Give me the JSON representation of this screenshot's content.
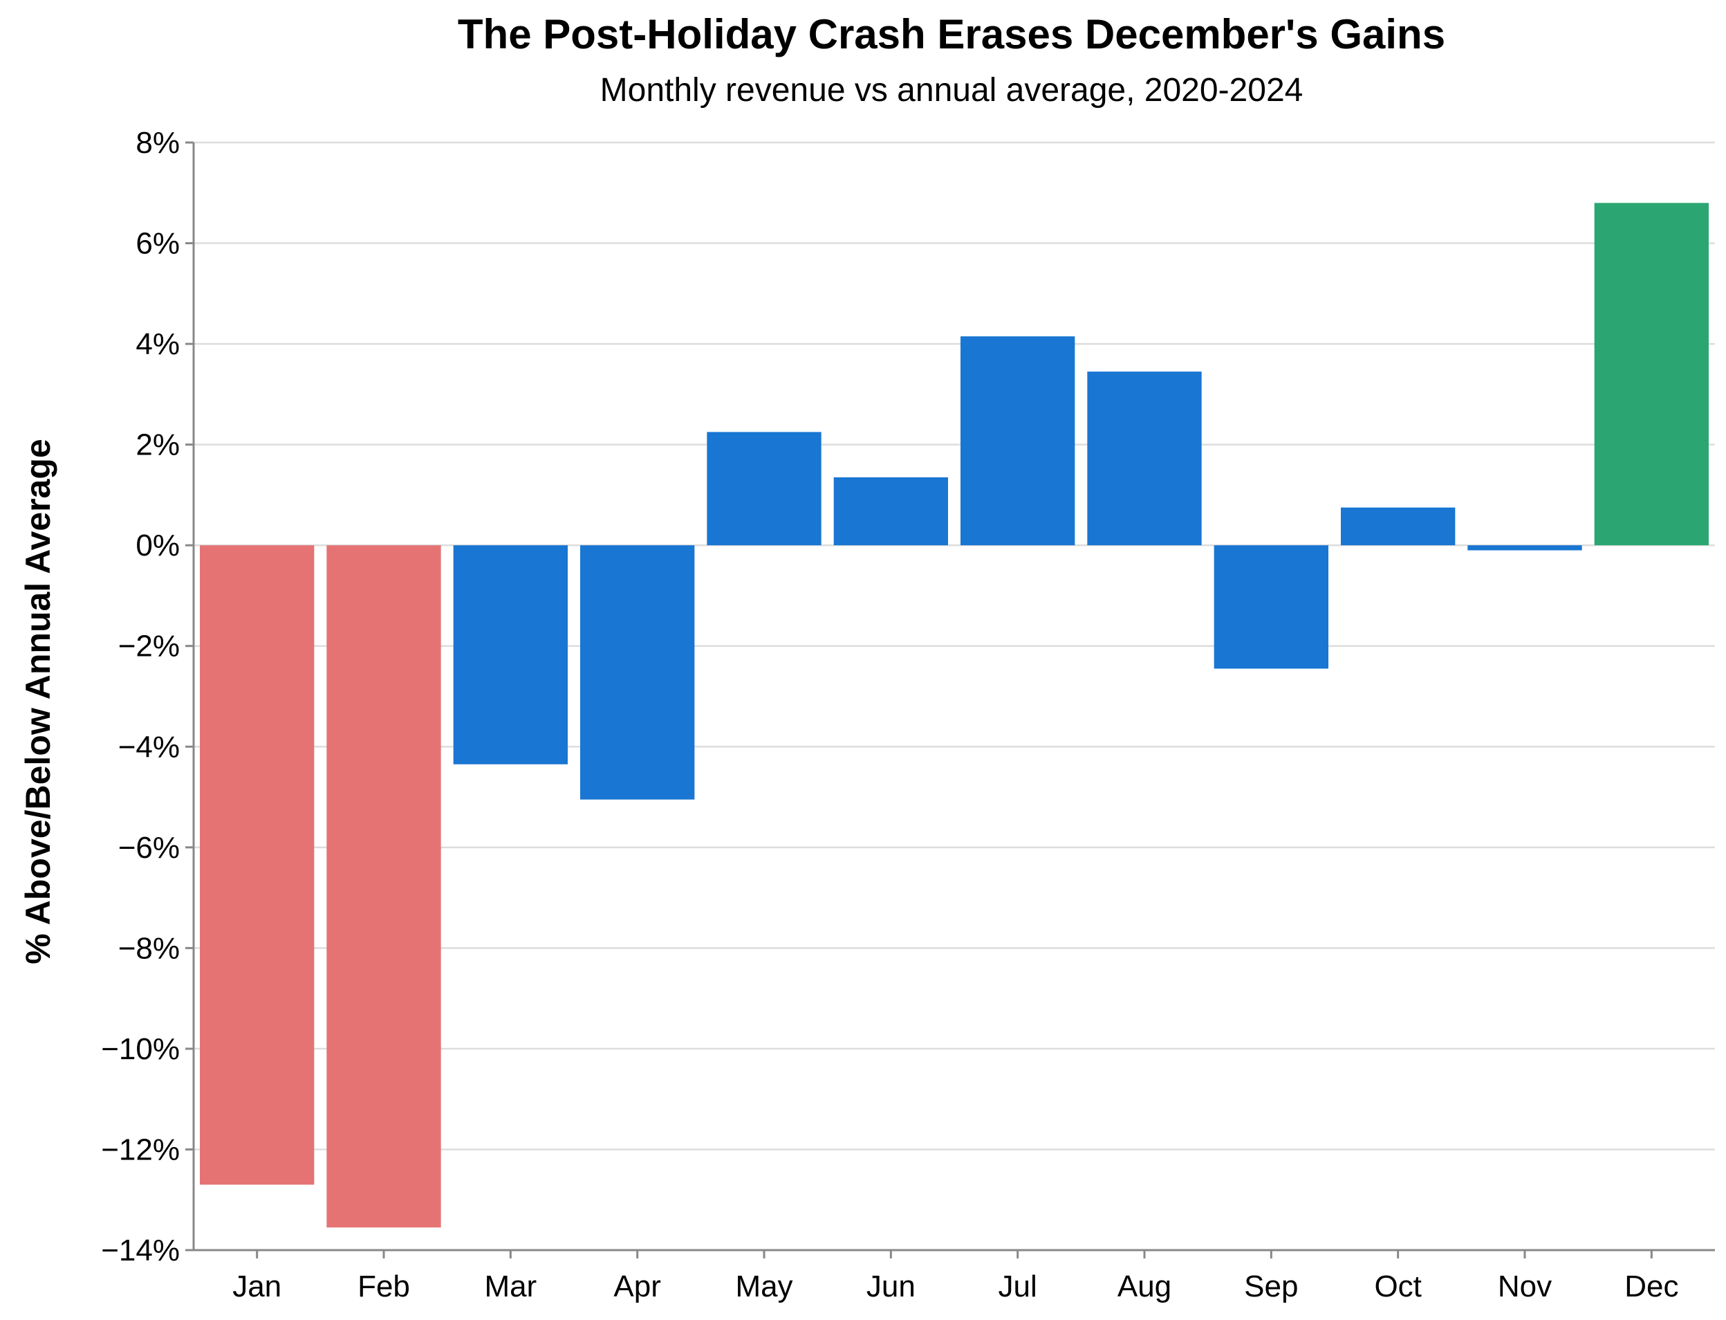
{
  "chart_data": {
    "type": "bar",
    "title": "The Post-Holiday Crash Erases December's Gains",
    "subtitle": "Monthly revenue vs annual average, 2020-2024",
    "xlabel": "",
    "ylabel": "% Above/Below Annual Average",
    "ylim": [
      -14,
      8
    ],
    "y_ticks": [
      8,
      6,
      4,
      2,
      0,
      -2,
      -4,
      -6,
      -8,
      -10,
      -12,
      -14
    ],
    "y_tick_labels": [
      "8%",
      "6%",
      "4%",
      "2%",
      "0%",
      "−2%",
      "−4%",
      "−6%",
      "−8%",
      "−10%",
      "−12%",
      "−14%"
    ],
    "grid": true,
    "categories": [
      "Jan",
      "Feb",
      "Mar",
      "Apr",
      "May",
      "Jun",
      "Jul",
      "Aug",
      "Sep",
      "Oct",
      "Nov",
      "Dec"
    ],
    "values": [
      -12.7,
      -13.55,
      -4.35,
      -5.05,
      2.25,
      1.35,
      4.15,
      3.45,
      -2.45,
      0.75,
      -0.1,
      6.8
    ],
    "bar_colors": [
      "#e57373",
      "#e57373",
      "#1976d2",
      "#1976d2",
      "#1976d2",
      "#1976d2",
      "#1976d2",
      "#1976d2",
      "#1976d2",
      "#1976d2",
      "#1976d2",
      "#2ba673"
    ]
  }
}
